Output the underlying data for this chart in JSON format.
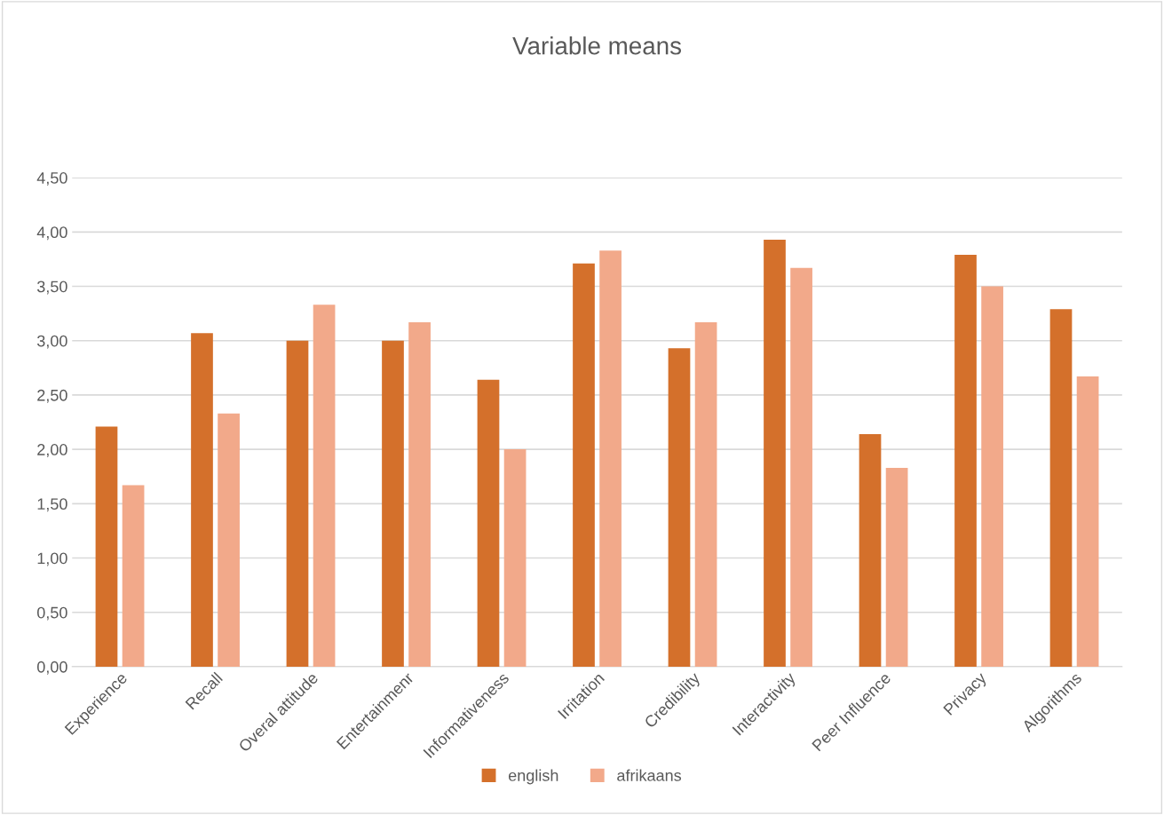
{
  "chart_data": {
    "type": "bar",
    "title": "Variable means",
    "categories": [
      "Experience",
      "Recall",
      "Overal attitude",
      "Entertainmenr",
      "Informativeness",
      "Irritation",
      "Credibility",
      "Interactivity",
      "Peer Influence",
      "Privacy",
      "Algorithms"
    ],
    "series": [
      {
        "name": "english",
        "color": "#d4702b",
        "values": [
          2.21,
          3.07,
          3.0,
          3.0,
          2.64,
          3.71,
          2.93,
          3.93,
          2.14,
          3.79,
          3.29
        ]
      },
      {
        "name": "afrikaans",
        "color": "#f2a98a",
        "values": [
          1.67,
          2.33,
          3.33,
          3.17,
          2.0,
          3.83,
          3.17,
          3.67,
          1.83,
          3.5,
          2.67
        ]
      }
    ],
    "ylim": [
      0,
      4.5
    ],
    "yticks": [
      {
        "value": 0,
        "label": "0,00"
      },
      {
        "value": 0.5,
        "label": "0,50"
      },
      {
        "value": 1,
        "label": "1,00"
      },
      {
        "value": 1.5,
        "label": "1,50"
      },
      {
        "value": 2,
        "label": "2,00"
      },
      {
        "value": 2.5,
        "label": "2,50"
      },
      {
        "value": 3,
        "label": "3,00"
      },
      {
        "value": 3.5,
        "label": "3,50"
      },
      {
        "value": 4,
        "label": "4,00"
      },
      {
        "value": 4.5,
        "label": "4,50"
      }
    ],
    "grid": "y",
    "legend": "bottom"
  }
}
